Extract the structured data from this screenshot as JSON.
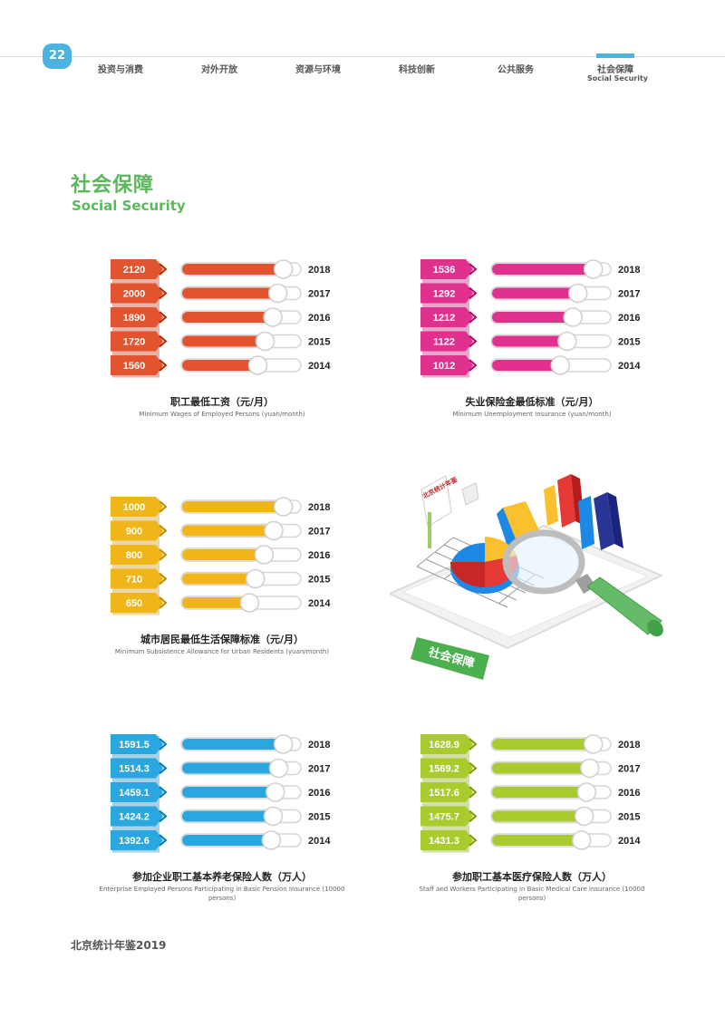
{
  "header": {
    "page_number": "22",
    "nav": [
      "投资与消费",
      "对外开放",
      "资源与环境",
      "科技创新",
      "公共服务",
      "社会保障"
    ],
    "active_sub": "Social Security",
    "accent": "#4ab3e0"
  },
  "section": {
    "title_cn": "社会保障",
    "title_en": "Social Security",
    "color": "#5cb85c"
  },
  "footer": {
    "text": "北京统计年鉴2019"
  },
  "illustration": {
    "stamp_text": "社会保障",
    "card_text": "北京统计年鉴"
  },
  "chart_data": [
    {
      "type": "bar",
      "color": "#e2532f",
      "categories": [
        "2018",
        "2017",
        "2016",
        "2015",
        "2014"
      ],
      "labels": [
        "2120",
        "2000",
        "1890",
        "1720",
        "1560"
      ],
      "values": [
        2120,
        2000,
        1890,
        1720,
        1560
      ],
      "title_cn": "职工最低工资（元/月）",
      "title_en": "Minimum Wages of Employed Persons (yuan/month)"
    },
    {
      "type": "bar",
      "color": "#e0318e",
      "categories": [
        "2018",
        "2017",
        "2016",
        "2015",
        "2014"
      ],
      "labels": [
        "1536",
        "1292",
        "1212",
        "1122",
        "1012"
      ],
      "values": [
        1536,
        1292,
        1212,
        1122,
        1012
      ],
      "title_cn": "失业保险金最低标准（元/月）",
      "title_en": "Minimum Unemployment Insurance (yuan/month)"
    },
    {
      "type": "bar",
      "color": "#f0b619",
      "categories": [
        "2018",
        "2017",
        "2016",
        "2015",
        "2014"
      ],
      "labels": [
        "1000",
        "900",
        "800",
        "710",
        "650"
      ],
      "values": [
        1000,
        900,
        800,
        710,
        650
      ],
      "title_cn": "城市居民最低生活保障标准（元/月）",
      "title_en": "Minimum Subsistence Allowance for Urban Residents (yuan/month)"
    },
    {
      "type": "bar",
      "color": "#2aa7df",
      "categories": [
        "2018",
        "2017",
        "2016",
        "2015",
        "2014"
      ],
      "labels": [
        "1591.5",
        "1514.3",
        "1459.1",
        "1424.2",
        "1392.6"
      ],
      "values": [
        1591.5,
        1514.3,
        1459.1,
        1424.2,
        1392.6
      ],
      "title_cn": "参加企业职工基本养老保险人数（万人）",
      "title_en": "Enterprise Employed Persons Participating in Basic Pension Insurance (10000 persons)"
    },
    {
      "type": "bar",
      "color": "#a9cb2d",
      "categories": [
        "2018",
        "2017",
        "2016",
        "2015",
        "2014"
      ],
      "labels": [
        "1628.9",
        "1569.2",
        "1517.6",
        "1475.7",
        "1431.3"
      ],
      "values": [
        1628.9,
        1569.2,
        1517.6,
        1475.7,
        1431.3
      ],
      "title_cn": "参加职工基本医疗保险人数（万人）",
      "title_en": "Staff and Workers Participating in Basic Medical Care Insurance (10000 persons)"
    }
  ]
}
